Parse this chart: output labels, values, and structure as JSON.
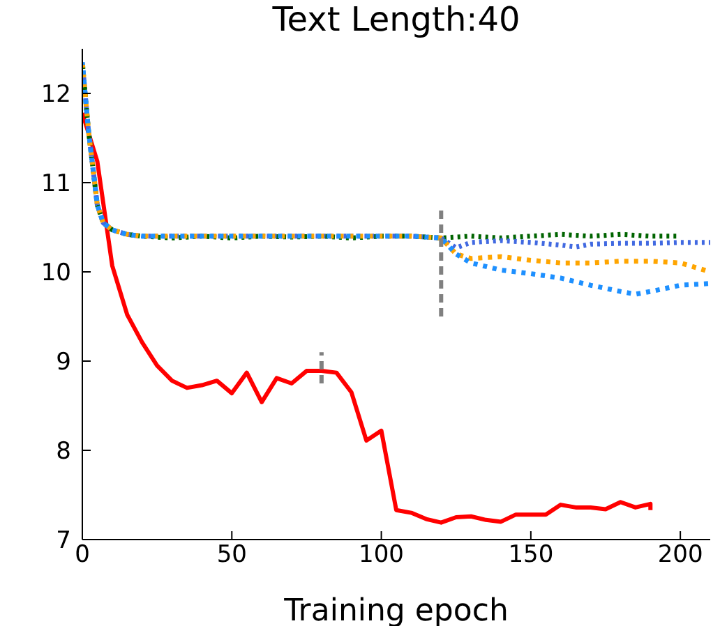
{
  "chart_data": {
    "type": "line",
    "title": "Text Length:40",
    "xlabel": "Training epoch",
    "xlim": [
      0,
      210
    ],
    "xticks": [
      0,
      50,
      100,
      150,
      200
    ],
    "ylim": [
      7,
      12.5
    ],
    "yticks": [
      7,
      8,
      9,
      10,
      11,
      12
    ],
    "grid": false,
    "legend": false,
    "marker": "none",
    "series": [
      {
        "color": "#ff0000",
        "line_style": "solid",
        "x": [
          0,
          5,
          10,
          15,
          20,
          25,
          30,
          35,
          40,
          45,
          50,
          55,
          60,
          65,
          70,
          75,
          80,
          85,
          90,
          95,
          100,
          105,
          110,
          115,
          120,
          125,
          130,
          135,
          140,
          145,
          150,
          155,
          160,
          165,
          170,
          175,
          180,
          185,
          190,
          190
        ],
        "values": [
          11.78,
          11.24,
          10.07,
          9.52,
          9.21,
          8.95,
          8.78,
          8.7,
          8.73,
          8.78,
          8.64,
          8.87,
          8.54,
          8.81,
          8.75,
          8.89,
          8.89,
          8.87,
          8.65,
          8.11,
          8.22,
          7.33,
          7.3,
          7.23,
          7.19,
          7.25,
          7.26,
          7.22,
          7.2,
          7.28,
          7.28,
          7.28,
          7.39,
          7.36,
          7.36,
          7.34,
          7.42,
          7.36,
          7.4,
          7.33
        ]
      },
      {
        "color": "#006400",
        "line_style": "dotted",
        "x": [
          0,
          2,
          5,
          7,
          10,
          15,
          20,
          30,
          40,
          50,
          60,
          70,
          80,
          90,
          100,
          110,
          120,
          130,
          140,
          150,
          160,
          170,
          180,
          190,
          200
        ],
        "values": [
          12.35,
          11.6,
          10.75,
          10.55,
          10.47,
          10.42,
          10.4,
          10.38,
          10.4,
          10.38,
          10.4,
          10.39,
          10.4,
          10.38,
          10.4,
          10.4,
          10.38,
          10.4,
          10.38,
          10.4,
          10.42,
          10.4,
          10.42,
          10.4,
          10.4
        ]
      },
      {
        "color": "#4169e1",
        "line_style": "dotted",
        "x": [
          0,
          2,
          5,
          7,
          10,
          15,
          20,
          30,
          40,
          50,
          60,
          70,
          80,
          90,
          100,
          110,
          120,
          125,
          130,
          140,
          150,
          160,
          165,
          170,
          180,
          190,
          200,
          210
        ],
        "values": [
          12.35,
          11.6,
          10.75,
          10.55,
          10.47,
          10.42,
          10.4,
          10.4,
          10.4,
          10.4,
          10.4,
          10.4,
          10.4,
          10.4,
          10.4,
          10.4,
          10.38,
          10.27,
          10.33,
          10.35,
          10.33,
          10.3,
          10.28,
          10.31,
          10.32,
          10.32,
          10.33,
          10.33
        ]
      },
      {
        "color": "#ffa500",
        "line_style": "dashed",
        "x": [
          0,
          2,
          5,
          7,
          10,
          15,
          20,
          30,
          40,
          50,
          60,
          70,
          80,
          90,
          100,
          110,
          120,
          125,
          130,
          140,
          150,
          160,
          170,
          180,
          190,
          200,
          205,
          210
        ],
        "values": [
          12.35,
          11.6,
          10.75,
          10.55,
          10.47,
          10.42,
          10.4,
          10.4,
          10.4,
          10.4,
          10.4,
          10.4,
          10.4,
          10.4,
          10.4,
          10.4,
          10.38,
          10.2,
          10.15,
          10.17,
          10.13,
          10.1,
          10.1,
          10.12,
          10.12,
          10.1,
          10.05,
          10.0
        ]
      },
      {
        "color": "#1e90ff",
        "line_style": "dashed",
        "x": [
          0,
          2,
          5,
          7,
          10,
          15,
          20,
          30,
          40,
          50,
          60,
          70,
          80,
          90,
          100,
          110,
          120,
          125,
          130,
          140,
          150,
          160,
          170,
          180,
          185,
          190,
          200,
          210
        ],
        "values": [
          12.35,
          11.6,
          10.75,
          10.55,
          10.47,
          10.42,
          10.4,
          10.4,
          10.4,
          10.4,
          10.4,
          10.4,
          10.4,
          10.4,
          10.4,
          10.4,
          10.38,
          10.2,
          10.1,
          10.02,
          9.98,
          9.93,
          9.85,
          9.78,
          9.75,
          9.78,
          9.85,
          9.87
        ]
      },
      {
        "color": "#808080",
        "line_style": "dashed",
        "x": [
          80,
          80
        ],
        "values": [
          8.75,
          9.1
        ]
      },
      {
        "color": "#808080",
        "line_style": "dashed",
        "x": [
          120,
          120
        ],
        "values": [
          9.5,
          10.75
        ]
      }
    ]
  }
}
